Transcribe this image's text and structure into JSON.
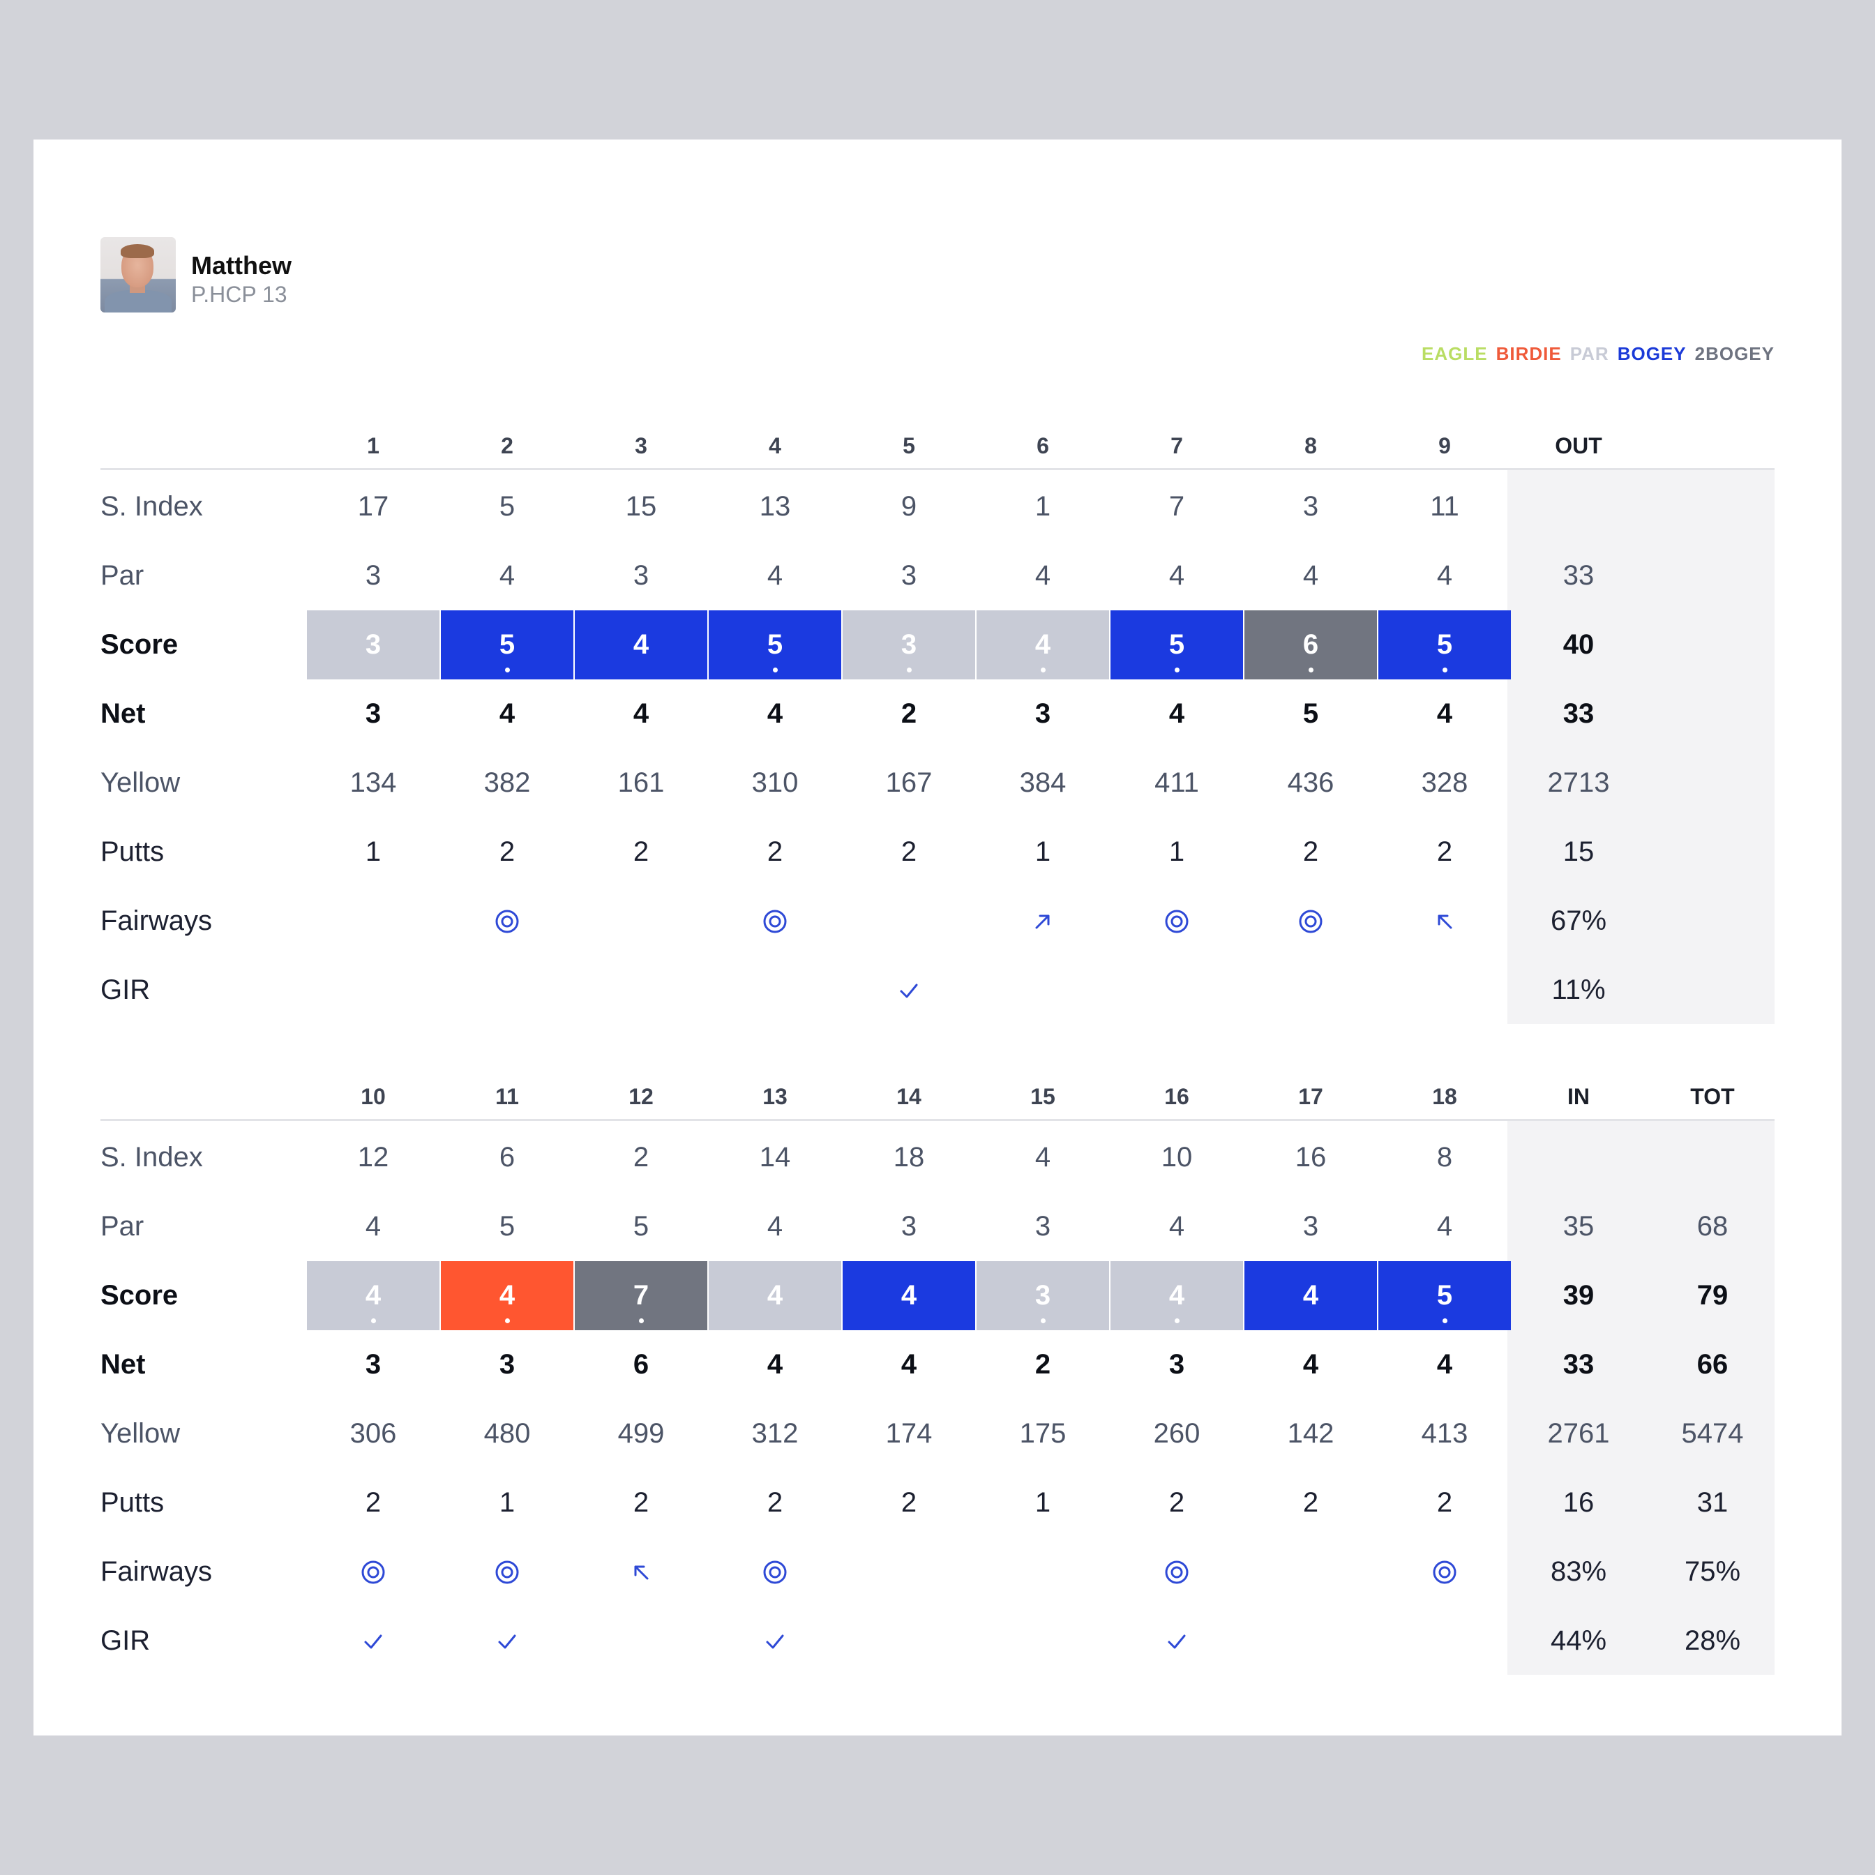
{
  "player": {
    "name": "Matthew",
    "handicap": "P.HCP 13"
  },
  "legend": [
    {
      "label": "EAGLE",
      "color": "#b9dd63"
    },
    {
      "label": "BIRDIE",
      "color": "#ef5a3a"
    },
    {
      "label": "PAR",
      "color": "#c8cbd6"
    },
    {
      "label": "BOGEY",
      "color": "#1b3ad8"
    },
    {
      "label": "2BOGEY",
      "color": "#6e7380"
    }
  ],
  "colors": {
    "par": "#c8cbd6",
    "birdie": "#ff5630",
    "bogey": "#1b3ae0",
    "double_bogey": "#717580",
    "icon": "#2e49d6"
  },
  "row_labels": [
    "S. Index",
    "Par",
    "Score",
    "Net",
    "Yellow",
    "Putts",
    "Fairways",
    "GIR"
  ],
  "front_nine": {
    "holes": [
      "1",
      "2",
      "3",
      "4",
      "5",
      "6",
      "7",
      "8",
      "9"
    ],
    "total_header": "OUT",
    "stroke_index": [
      "17",
      "5",
      "15",
      "13",
      "9",
      "1",
      "7",
      "3",
      "11"
    ],
    "par": [
      "3",
      "4",
      "3",
      "4",
      "3",
      "4",
      "4",
      "4",
      "4"
    ],
    "score": [
      {
        "value": "3",
        "result": "par",
        "dot": false
      },
      {
        "value": "5",
        "result": "bogey",
        "dot": true
      },
      {
        "value": "4",
        "result": "bogey",
        "dot": false
      },
      {
        "value": "5",
        "result": "bogey",
        "dot": true
      },
      {
        "value": "3",
        "result": "par",
        "dot": true
      },
      {
        "value": "4",
        "result": "par",
        "dot": true
      },
      {
        "value": "5",
        "result": "bogey",
        "dot": true
      },
      {
        "value": "6",
        "result": "double_bogey",
        "dot": true
      },
      {
        "value": "5",
        "result": "bogey",
        "dot": true
      }
    ],
    "net": [
      "3",
      "4",
      "4",
      "4",
      "2",
      "3",
      "4",
      "5",
      "4"
    ],
    "yellow": [
      "134",
      "382",
      "161",
      "310",
      "167",
      "384",
      "411",
      "436",
      "328"
    ],
    "putts": [
      "1",
      "2",
      "2",
      "2",
      "2",
      "1",
      "1",
      "2",
      "2"
    ],
    "fairways": [
      "",
      "hit-target-icon",
      "",
      "hit-target-icon",
      "",
      "miss-right-arrow-icon",
      "hit-target-icon",
      "hit-target-icon",
      "miss-left-arrow-icon"
    ],
    "gir": [
      "",
      "",
      "",
      "",
      "check-icon",
      "",
      "",
      "",
      ""
    ],
    "totals": {
      "out": {
        "stroke_index": "",
        "par": "33",
        "score": "40",
        "net": "33",
        "yellow": "2713",
        "putts": "15",
        "fairways": "67%",
        "gir": "11%"
      }
    }
  },
  "back_nine": {
    "holes": [
      "10",
      "11",
      "12",
      "13",
      "14",
      "15",
      "16",
      "17",
      "18"
    ],
    "total_headers": [
      "IN",
      "TOT"
    ],
    "stroke_index": [
      "12",
      "6",
      "2",
      "14",
      "18",
      "4",
      "10",
      "16",
      "8"
    ],
    "par": [
      "4",
      "5",
      "5",
      "4",
      "3",
      "3",
      "4",
      "3",
      "4"
    ],
    "score": [
      {
        "value": "4",
        "result": "par",
        "dot": true
      },
      {
        "value": "4",
        "result": "birdie",
        "dot": true
      },
      {
        "value": "7",
        "result": "double_bogey",
        "dot": true
      },
      {
        "value": "4",
        "result": "par",
        "dot": false
      },
      {
        "value": "4",
        "result": "bogey",
        "dot": false
      },
      {
        "value": "3",
        "result": "par",
        "dot": true
      },
      {
        "value": "4",
        "result": "par",
        "dot": true
      },
      {
        "value": "4",
        "result": "bogey",
        "dot": false
      },
      {
        "value": "5",
        "result": "bogey",
        "dot": true
      }
    ],
    "net": [
      "3",
      "3",
      "6",
      "4",
      "4",
      "2",
      "3",
      "4",
      "4"
    ],
    "yellow": [
      "306",
      "480",
      "499",
      "312",
      "174",
      "175",
      "260",
      "142",
      "413"
    ],
    "putts": [
      "2",
      "1",
      "2",
      "2",
      "2",
      "1",
      "2",
      "2",
      "2"
    ],
    "fairways": [
      "hit-target-icon",
      "hit-target-icon",
      "miss-left-arrow-icon",
      "hit-target-icon",
      "",
      "",
      "hit-target-icon",
      "",
      "hit-target-icon"
    ],
    "gir": [
      "check-icon",
      "check-icon",
      "",
      "check-icon",
      "",
      "",
      "check-icon",
      "",
      ""
    ],
    "totals": {
      "in": {
        "stroke_index": "",
        "par": "35",
        "score": "39",
        "net": "33",
        "yellow": "2761",
        "putts": "16",
        "fairways": "83%",
        "gir": "44%"
      },
      "tot": {
        "stroke_index": "",
        "par": "68",
        "score": "79",
        "net": "66",
        "yellow": "5474",
        "putts": "31",
        "fairways": "75%",
        "gir": "28%"
      }
    }
  }
}
